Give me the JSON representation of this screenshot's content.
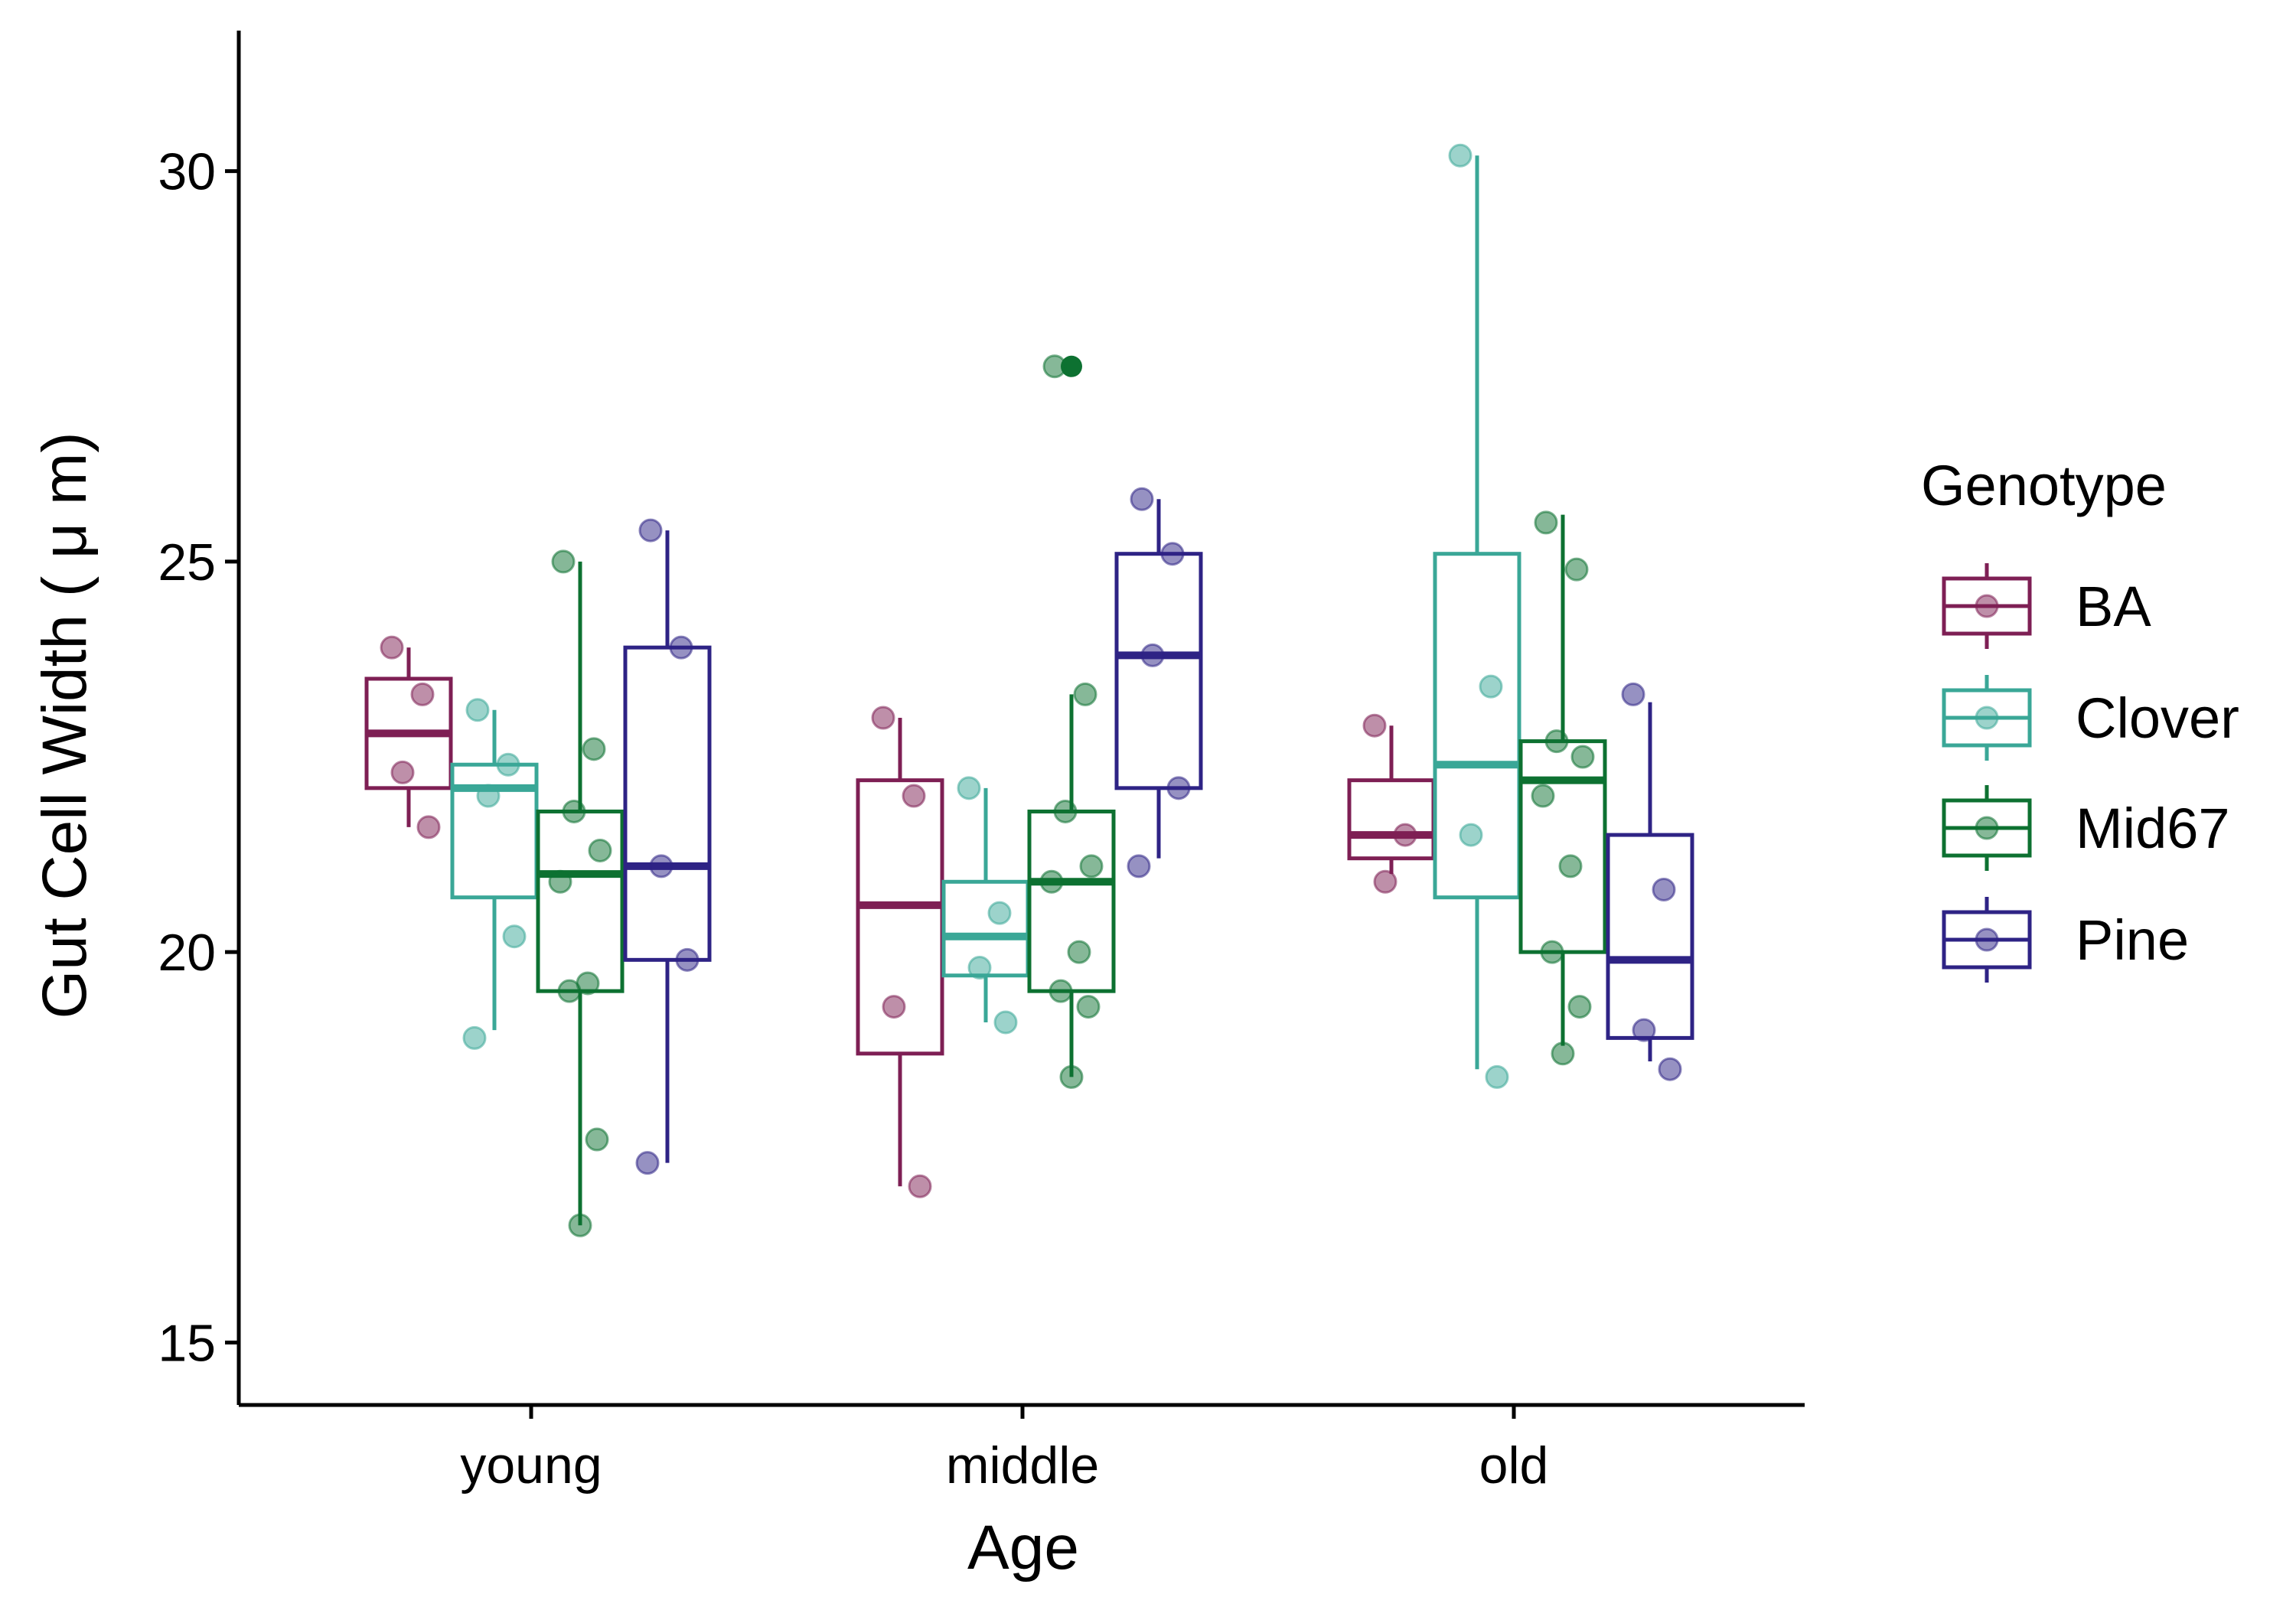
{
  "chart_data": {
    "type": "box",
    "xlabel": "Age",
    "ylabel": "Gut Cell Width ( μ m)",
    "ylim": [
      14.2,
      31.8
    ],
    "yticks": [
      15,
      20,
      25,
      30
    ],
    "grid": false,
    "legend": {
      "title": "Genotype",
      "position": "right"
    },
    "categories": [
      "young",
      "middle",
      "old"
    ],
    "series": [
      {
        "name": "BA",
        "color": "#7E1F54",
        "boxes": [
          {
            "category": "young",
            "min": 21.6,
            "q1": 22.1,
            "median": 22.8,
            "q3": 23.5,
            "max": 23.9,
            "points": [
              23.9,
              23.3,
              22.3,
              21.6
            ]
          },
          {
            "category": "middle",
            "min": 17.0,
            "q1": 18.7,
            "median": 20.6,
            "q3": 22.2,
            "max": 23.0,
            "points": [
              23.0,
              22.0,
              19.3,
              17.0
            ]
          },
          {
            "category": "old",
            "min": 21.0,
            "q1": 21.2,
            "median": 21.5,
            "q3": 22.2,
            "max": 22.9,
            "points": [
              22.9,
              21.5,
              20.9
            ]
          }
        ]
      },
      {
        "name": "Clover",
        "color": "#3AA797",
        "boxes": [
          {
            "category": "young",
            "min": 19.0,
            "q1": 20.7,
            "median": 22.1,
            "q3": 22.4,
            "max": 23.1,
            "points": [
              23.1,
              22.4,
              22.0,
              20.2,
              18.9
            ]
          },
          {
            "category": "middle",
            "min": 19.1,
            "q1": 19.7,
            "median": 20.2,
            "q3": 20.9,
            "max": 22.1,
            "points": [
              22.1,
              20.5,
              19.8,
              19.1
            ]
          },
          {
            "category": "old",
            "min": 18.5,
            "q1": 20.7,
            "median": 22.4,
            "q3": 25.1,
            "max": 30.2,
            "points": [
              30.2,
              23.4,
              21.5,
              18.4
            ]
          }
        ]
      },
      {
        "name": "Mid67",
        "color": "#0D7131",
        "boxes": [
          {
            "category": "young",
            "min": 16.5,
            "q1": 19.5,
            "median": 21.0,
            "q3": 21.8,
            "max": 25.0,
            "points": [
              25.0,
              22.6,
              21.8,
              21.3,
              20.9,
              19.6,
              19.5,
              17.6,
              16.5
            ]
          },
          {
            "category": "middle",
            "min": 18.4,
            "q1": 19.5,
            "median": 20.9,
            "q3": 21.8,
            "max": 23.3,
            "outliers": [
              27.5
            ],
            "points": [
              27.5,
              23.3,
              21.8,
              21.1,
              20.9,
              20.0,
              19.5,
              19.3,
              18.4
            ]
          },
          {
            "category": "old",
            "min": 18.8,
            "q1": 20.0,
            "median": 22.2,
            "q3": 22.7,
            "max": 25.6,
            "points": [
              25.5,
              24.9,
              22.7,
              22.5,
              22.0,
              21.1,
              20.0,
              19.3,
              18.7
            ]
          }
        ]
      },
      {
        "name": "Pine",
        "color": "#2E2385",
        "boxes": [
          {
            "category": "young",
            "min": 17.3,
            "q1": 19.9,
            "median": 21.1,
            "q3": 23.9,
            "max": 25.4,
            "points": [
              25.4,
              23.9,
              21.1,
              19.9,
              17.3
            ]
          },
          {
            "category": "middle",
            "min": 21.2,
            "q1": 22.1,
            "median": 23.8,
            "q3": 25.1,
            "max": 25.8,
            "points": [
              25.8,
              25.1,
              23.8,
              22.1,
              21.1
            ]
          },
          {
            "category": "old",
            "min": 18.6,
            "q1": 18.9,
            "median": 19.9,
            "q3": 21.5,
            "max": 23.2,
            "points": [
              23.3,
              20.8,
              19.0,
              18.5
            ]
          }
        ]
      }
    ]
  }
}
